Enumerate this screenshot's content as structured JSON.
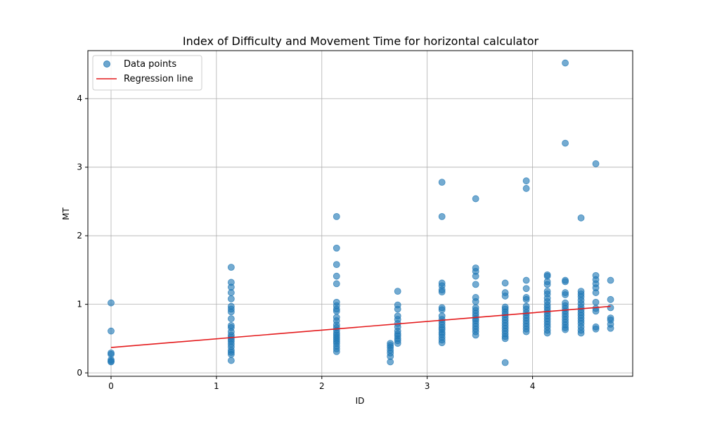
{
  "chart_data": {
    "type": "scatter",
    "title": "Index of Difficulty and Movement Time for horizontal calculator",
    "xlabel": "ID",
    "ylabel": "MT",
    "xlim": [
      -0.22,
      4.95
    ],
    "ylim": [
      -0.05,
      4.7
    ],
    "xticks": [
      0,
      1,
      2,
      3,
      4
    ],
    "yticks": [
      0,
      1,
      2,
      3,
      4
    ],
    "grid": true,
    "legend_position": "top-left",
    "legend": [
      {
        "label": "Data points",
        "kind": "marker"
      },
      {
        "label": "Regression line",
        "kind": "line"
      }
    ],
    "colors": {
      "points": "#1f77b4",
      "line": "#e41a1c",
      "grid": "#b0b0b0"
    },
    "series": [
      {
        "name": "Data points",
        "type": "scatter",
        "points": [
          [
            0,
            1.02
          ],
          [
            0,
            0.61
          ],
          [
            0,
            0.29
          ],
          [
            0,
            0.27
          ],
          [
            0,
            0.19
          ],
          [
            0,
            0.17
          ],
          [
            0,
            0.16
          ],
          [
            1.14,
            1.54
          ],
          [
            1.14,
            1.32
          ],
          [
            1.14,
            1.25
          ],
          [
            1.14,
            1.17
          ],
          [
            1.14,
            1.08
          ],
          [
            1.14,
            0.97
          ],
          [
            1.14,
            0.93
          ],
          [
            1.14,
            0.89
          ],
          [
            1.14,
            0.79
          ],
          [
            1.14,
            0.69
          ],
          [
            1.14,
            0.66
          ],
          [
            1.14,
            0.6
          ],
          [
            1.14,
            0.55
          ],
          [
            1.14,
            0.52
          ],
          [
            1.14,
            0.49
          ],
          [
            1.14,
            0.46
          ],
          [
            1.14,
            0.42
          ],
          [
            1.14,
            0.38
          ],
          [
            1.14,
            0.33
          ],
          [
            1.14,
            0.3
          ],
          [
            1.14,
            0.27
          ],
          [
            1.14,
            0.18
          ],
          [
            2.14,
            2.28
          ],
          [
            2.14,
            1.82
          ],
          [
            2.14,
            1.58
          ],
          [
            2.14,
            1.41
          ],
          [
            2.14,
            1.3
          ],
          [
            2.14,
            1.03
          ],
          [
            2.14,
            0.98
          ],
          [
            2.14,
            0.93
          ],
          [
            2.14,
            0.9
          ],
          [
            2.14,
            0.81
          ],
          [
            2.14,
            0.76
          ],
          [
            2.14,
            0.7
          ],
          [
            2.14,
            0.66
          ],
          [
            2.14,
            0.62
          ],
          [
            2.14,
            0.58
          ],
          [
            2.14,
            0.55
          ],
          [
            2.14,
            0.52
          ],
          [
            2.14,
            0.49
          ],
          [
            2.14,
            0.46
          ],
          [
            2.14,
            0.43
          ],
          [
            2.14,
            0.39
          ],
          [
            2.14,
            0.35
          ],
          [
            2.14,
            0.31
          ],
          [
            2.65,
            0.43
          ],
          [
            2.65,
            0.4
          ],
          [
            2.65,
            0.37
          ],
          [
            2.65,
            0.33
          ],
          [
            2.65,
            0.29
          ],
          [
            2.65,
            0.24
          ],
          [
            2.65,
            0.16
          ],
          [
            2.72,
            1.19
          ],
          [
            2.72,
            0.99
          ],
          [
            2.72,
            0.93
          ],
          [
            2.72,
            0.83
          ],
          [
            2.72,
            0.78
          ],
          [
            2.72,
            0.72
          ],
          [
            2.72,
            0.67
          ],
          [
            2.72,
            0.61
          ],
          [
            2.72,
            0.57
          ],
          [
            2.72,
            0.54
          ],
          [
            2.72,
            0.5
          ],
          [
            2.72,
            0.47
          ],
          [
            2.72,
            0.43
          ],
          [
            3.14,
            2.78
          ],
          [
            3.14,
            2.28
          ],
          [
            3.14,
            1.31
          ],
          [
            3.14,
            1.27
          ],
          [
            3.14,
            1.21
          ],
          [
            3.14,
            1.18
          ],
          [
            3.14,
            0.95
          ],
          [
            3.14,
            0.92
          ],
          [
            3.14,
            0.83
          ],
          [
            3.14,
            0.78
          ],
          [
            3.14,
            0.74
          ],
          [
            3.14,
            0.7
          ],
          [
            3.14,
            0.66
          ],
          [
            3.14,
            0.63
          ],
          [
            3.14,
            0.59
          ],
          [
            3.14,
            0.56
          ],
          [
            3.14,
            0.52
          ],
          [
            3.14,
            0.48
          ],
          [
            3.14,
            0.44
          ],
          [
            3.46,
            2.54
          ],
          [
            3.46,
            1.53
          ],
          [
            3.46,
            1.48
          ],
          [
            3.46,
            1.41
          ],
          [
            3.46,
            1.29
          ],
          [
            3.46,
            1.1
          ],
          [
            3.46,
            1.04
          ],
          [
            3.46,
            0.95
          ],
          [
            3.46,
            0.91
          ],
          [
            3.46,
            0.87
          ],
          [
            3.46,
            0.83
          ],
          [
            3.46,
            0.79
          ],
          [
            3.46,
            0.76
          ],
          [
            3.46,
            0.72
          ],
          [
            3.46,
            0.68
          ],
          [
            3.46,
            0.64
          ],
          [
            3.46,
            0.6
          ],
          [
            3.46,
            0.55
          ],
          [
            3.74,
            1.31
          ],
          [
            3.74,
            1.17
          ],
          [
            3.74,
            1.12
          ],
          [
            3.74,
            0.96
          ],
          [
            3.74,
            0.93
          ],
          [
            3.74,
            0.89
          ],
          [
            3.74,
            0.85
          ],
          [
            3.74,
            0.81
          ],
          [
            3.74,
            0.77
          ],
          [
            3.74,
            0.73
          ],
          [
            3.74,
            0.69
          ],
          [
            3.74,
            0.65
          ],
          [
            3.74,
            0.61
          ],
          [
            3.74,
            0.57
          ],
          [
            3.74,
            0.53
          ],
          [
            3.74,
            0.5
          ],
          [
            3.74,
            0.15
          ],
          [
            3.94,
            2.8
          ],
          [
            3.94,
            2.69
          ],
          [
            3.94,
            1.35
          ],
          [
            3.94,
            1.23
          ],
          [
            3.94,
            1.1
          ],
          [
            3.94,
            1.07
          ],
          [
            3.94,
            0.97
          ],
          [
            3.94,
            0.93
          ],
          [
            3.94,
            0.88
          ],
          [
            3.94,
            0.84
          ],
          [
            3.94,
            0.8
          ],
          [
            3.94,
            0.76
          ],
          [
            3.94,
            0.72
          ],
          [
            3.94,
            0.68
          ],
          [
            3.94,
            0.64
          ],
          [
            3.94,
            0.6
          ],
          [
            4.14,
            1.43
          ],
          [
            4.14,
            1.41
          ],
          [
            4.14,
            1.33
          ],
          [
            4.14,
            1.29
          ],
          [
            4.14,
            1.19
          ],
          [
            4.14,
            1.15
          ],
          [
            4.14,
            1.09
          ],
          [
            4.14,
            1.04
          ],
          [
            4.14,
            0.99
          ],
          [
            4.14,
            0.95
          ],
          [
            4.14,
            0.91
          ],
          [
            4.14,
            0.87
          ],
          [
            4.14,
            0.83
          ],
          [
            4.14,
            0.79
          ],
          [
            4.14,
            0.75
          ],
          [
            4.14,
            0.71
          ],
          [
            4.14,
            0.67
          ],
          [
            4.14,
            0.62
          ],
          [
            4.14,
            0.58
          ],
          [
            4.31,
            4.52
          ],
          [
            4.31,
            3.35
          ],
          [
            4.31,
            1.35
          ],
          [
            4.31,
            1.33
          ],
          [
            4.31,
            1.17
          ],
          [
            4.31,
            1.14
          ],
          [
            4.31,
            1.02
          ],
          [
            4.31,
            0.98
          ],
          [
            4.31,
            0.94
          ],
          [
            4.31,
            0.9
          ],
          [
            4.31,
            0.86
          ],
          [
            4.31,
            0.82
          ],
          [
            4.31,
            0.78
          ],
          [
            4.31,
            0.74
          ],
          [
            4.31,
            0.7
          ],
          [
            4.31,
            0.66
          ],
          [
            4.31,
            0.63
          ],
          [
            4.46,
            2.26
          ],
          [
            4.46,
            1.19
          ],
          [
            4.46,
            1.15
          ],
          [
            4.46,
            1.11
          ],
          [
            4.46,
            1.06
          ],
          [
            4.46,
            1.01
          ],
          [
            4.46,
            0.96
          ],
          [
            4.46,
            0.92
          ],
          [
            4.46,
            0.88
          ],
          [
            4.46,
            0.84
          ],
          [
            4.46,
            0.8
          ],
          [
            4.46,
            0.76
          ],
          [
            4.46,
            0.72
          ],
          [
            4.46,
            0.67
          ],
          [
            4.46,
            0.62
          ],
          [
            4.46,
            0.58
          ],
          [
            4.6,
            3.05
          ],
          [
            4.6,
            1.42
          ],
          [
            4.6,
            1.36
          ],
          [
            4.6,
            1.3
          ],
          [
            4.6,
            1.24
          ],
          [
            4.6,
            1.17
          ],
          [
            4.6,
            1.03
          ],
          [
            4.6,
            0.94
          ],
          [
            4.6,
            0.9
          ],
          [
            4.6,
            0.67
          ],
          [
            4.6,
            0.64
          ],
          [
            4.74,
            1.35
          ],
          [
            4.74,
            1.07
          ],
          [
            4.74,
            0.95
          ],
          [
            4.74,
            0.8
          ],
          [
            4.74,
            0.77
          ],
          [
            4.74,
            0.71
          ],
          [
            4.74,
            0.65
          ]
        ]
      },
      {
        "name": "Regression line",
        "type": "line",
        "x": [
          0,
          4.74
        ],
        "y": [
          0.37,
          0.97
        ]
      }
    ]
  }
}
